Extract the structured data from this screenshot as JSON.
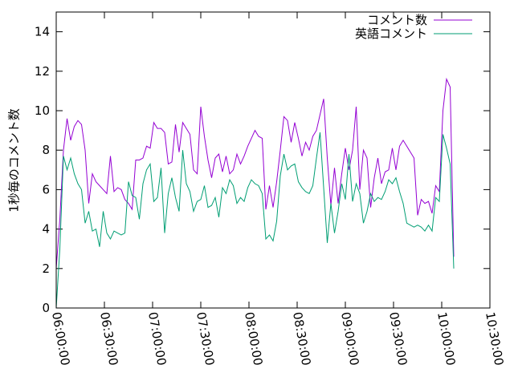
{
  "chart_data": {
    "type": "line",
    "ylabel": "1秒毎のコメント数",
    "x": [
      "06:00:00",
      "06:02:15",
      "06:04:30",
      "06:06:45",
      "06:09:00",
      "06:11:15",
      "06:13:30",
      "06:15:45",
      "06:18:00",
      "06:20:15",
      "06:22:30",
      "06:24:45",
      "06:27:00",
      "06:29:15",
      "06:31:30",
      "06:33:45",
      "06:36:00",
      "06:38:15",
      "06:40:30",
      "06:42:45",
      "06:45:00",
      "06:47:15",
      "06:49:30",
      "06:51:45",
      "06:54:00",
      "06:56:15",
      "06:58:30",
      "07:00:45",
      "07:03:00",
      "07:05:15",
      "07:07:30",
      "07:09:45",
      "07:12:00",
      "07:14:15",
      "07:16:30",
      "07:18:45",
      "07:21:00",
      "07:23:15",
      "07:25:30",
      "07:27:45",
      "07:30:00",
      "07:32:15",
      "07:34:30",
      "07:36:45",
      "07:39:00",
      "07:41:15",
      "07:43:30",
      "07:45:45",
      "07:48:00",
      "07:50:15",
      "07:52:30",
      "07:54:45",
      "07:57:00",
      "07:59:15",
      "08:01:30",
      "08:03:45",
      "08:06:00",
      "08:08:15",
      "08:10:30",
      "08:12:45",
      "08:15:00",
      "08:17:15",
      "08:19:30",
      "08:21:45",
      "08:24:00",
      "08:26:15",
      "08:28:30",
      "08:30:45",
      "08:33:00",
      "08:35:15",
      "08:37:30",
      "08:39:45",
      "08:42:00",
      "08:44:15",
      "08:46:30",
      "08:48:45",
      "08:51:00",
      "08:53:15",
      "08:55:30",
      "08:57:45",
      "09:00:00",
      "09:02:15",
      "09:04:30",
      "09:06:45",
      "09:09:00",
      "09:11:15",
      "09:13:30",
      "09:15:45",
      "09:18:00",
      "09:20:15",
      "09:22:30",
      "09:24:45",
      "09:27:00",
      "09:29:15",
      "09:31:30",
      "09:33:45",
      "09:36:00",
      "09:38:15",
      "09:40:30",
      "09:42:45",
      "09:45:00",
      "09:47:15",
      "09:49:30",
      "09:51:45",
      "09:54:00",
      "09:56:15",
      "09:58:30",
      "10:00:45",
      "10:03:00",
      "10:05:15",
      "10:07:30"
    ],
    "series": [
      {
        "name": "コメント数",
        "color": "#9400d3",
        "values": [
          2.0,
          4.5,
          8.0,
          9.6,
          8.5,
          9.2,
          9.5,
          9.3,
          8.0,
          5.3,
          6.8,
          6.4,
          6.2,
          6.0,
          5.8,
          7.7,
          5.9,
          6.1,
          6.0,
          5.5,
          5.3,
          5.0,
          7.5,
          7.5,
          7.6,
          8.2,
          8.1,
          9.4,
          9.1,
          9.1,
          8.9,
          7.3,
          7.4,
          9.3,
          7.9,
          9.4,
          9.1,
          8.8,
          7.0,
          6.8,
          10.2,
          8.7,
          7.5,
          6.6,
          7.6,
          7.8,
          6.9,
          7.7,
          6.8,
          7.0,
          7.8,
          7.3,
          7.7,
          8.2,
          8.6,
          9.0,
          8.7,
          8.6,
          5.0,
          6.2,
          5.1,
          6.4,
          8.0,
          9.7,
          9.5,
          8.4,
          9.4,
          8.6,
          7.7,
          8.4,
          8.0,
          8.7,
          9.0,
          9.8,
          10.6,
          7.6,
          5.2,
          7.1,
          5.3,
          6.8,
          8.1,
          7.0,
          8.0,
          10.2,
          6.0,
          8.0,
          7.6,
          5.1,
          6.6,
          7.6,
          6.3,
          6.9,
          7.0,
          8.1,
          7.0,
          8.2,
          8.5,
          8.2,
          7.9,
          7.6,
          4.7,
          5.5,
          5.3,
          5.4,
          4.8,
          6.2,
          5.9,
          10.0,
          11.6,
          11.2,
          2.6
        ]
      },
      {
        "name": "英語コメント",
        "color": "#009e73",
        "values": [
          0.0,
          3.0,
          7.7,
          7.0,
          7.6,
          6.8,
          6.3,
          6.0,
          4.3,
          4.9,
          3.9,
          4.0,
          3.1,
          4.9,
          3.8,
          3.5,
          3.9,
          3.8,
          3.7,
          3.8,
          6.4,
          5.7,
          5.6,
          4.5,
          6.3,
          7.0,
          7.3,
          5.4,
          5.6,
          7.1,
          3.8,
          5.8,
          6.6,
          5.6,
          4.9,
          8.0,
          6.3,
          5.9,
          4.9,
          5.4,
          5.5,
          6.2,
          5.1,
          5.2,
          5.6,
          4.6,
          6.1,
          5.8,
          6.5,
          6.2,
          5.3,
          5.6,
          5.4,
          6.1,
          6.5,
          6.3,
          6.2,
          5.8,
          3.5,
          3.7,
          3.4,
          4.4,
          6.7,
          7.8,
          7.0,
          7.2,
          7.3,
          6.4,
          6.1,
          5.9,
          5.8,
          6.2,
          7.6,
          8.9,
          6.1,
          3.3,
          5.3,
          3.8,
          4.9,
          6.3,
          5.5,
          7.8,
          5.4,
          6.3,
          5.8,
          4.3,
          4.9,
          5.8,
          5.4,
          5.6,
          5.5,
          5.9,
          6.5,
          6.3,
          6.6,
          5.9,
          5.3,
          4.3,
          4.2,
          4.1,
          4.2,
          4.1,
          3.9,
          4.2,
          3.9,
          5.6,
          5.4,
          8.8,
          8.1,
          7.3,
          2.0
        ]
      }
    ],
    "xlim": [
      "06:00:00",
      "10:30:00"
    ],
    "xticks": [
      "06:00:00",
      "06:30:00",
      "07:00:00",
      "07:30:00",
      "08:00:00",
      "08:30:00",
      "09:00:00",
      "09:30:00",
      "10:00:00",
      "10:30:00"
    ],
    "ylim": [
      0,
      15
    ],
    "yticks": [
      0,
      2,
      4,
      6,
      8,
      10,
      12,
      14
    ],
    "legend": "top-right"
  }
}
